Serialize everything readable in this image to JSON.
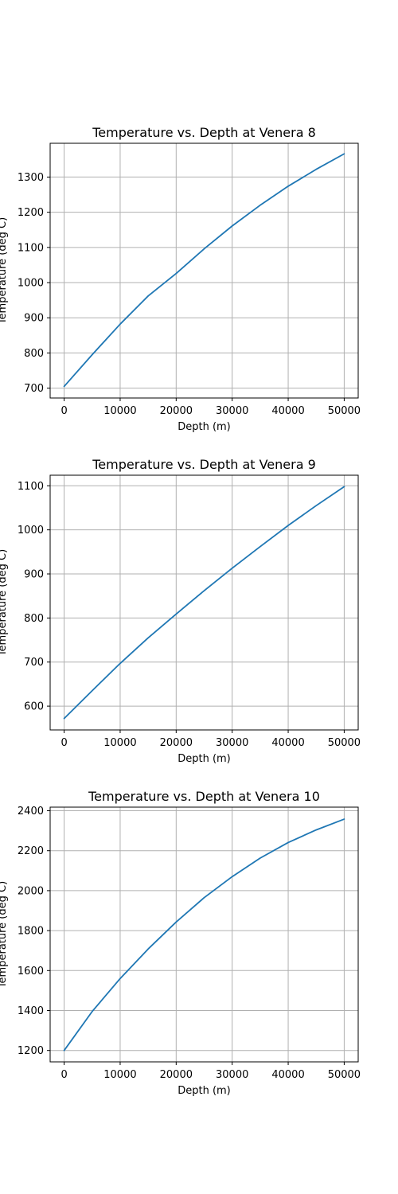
{
  "colors": {
    "series": "#1f77b4",
    "grid": "#b0b0b0"
  },
  "chart_data": [
    {
      "type": "line",
      "title": "Temperature vs. Depth at Venera 8",
      "xlabel": "Depth (m)",
      "ylabel": "Temperature (deg C)",
      "grid": true,
      "xlim": [
        -2500,
        52500
      ],
      "ylim": [
        672,
        1396
      ],
      "xticks": [
        0,
        10000,
        20000,
        30000,
        40000,
        50000
      ],
      "yticks": [
        700,
        800,
        900,
        1000,
        1100,
        1200,
        1300
      ],
      "series": [
        {
          "x": [
            0,
            5000,
            10000,
            15000,
            20000,
            25000,
            30000,
            35000,
            40000,
            45000,
            50000
          ],
          "values": [
            705,
            795,
            882,
            962,
            1026,
            1096,
            1161,
            1220,
            1274,
            1322,
            1366
          ]
        }
      ]
    },
    {
      "type": "line",
      "title": "Temperature vs. Depth at Venera 9",
      "xlabel": "Depth (m)",
      "ylabel": "Temperature (deg C)",
      "grid": true,
      "xlim": [
        -2500,
        52500
      ],
      "ylim": [
        546,
        1124
      ],
      "xticks": [
        0,
        10000,
        20000,
        30000,
        40000,
        50000
      ],
      "yticks": [
        600,
        700,
        800,
        900,
        1000,
        1100
      ],
      "series": [
        {
          "x": [
            0,
            5000,
            10000,
            15000,
            20000,
            25000,
            30000,
            35000,
            40000,
            45000,
            50000
          ],
          "values": [
            572,
            635,
            697,
            755,
            809,
            862,
            913,
            962,
            1010,
            1055,
            1098
          ]
        }
      ]
    },
    {
      "type": "line",
      "title": "Temperature vs. Depth at Venera 10",
      "xlabel": "Depth (m)",
      "ylabel": "Temperature (deg C)",
      "grid": true,
      "xlim": [
        -2500,
        52500
      ],
      "ylim": [
        1143,
        2418
      ],
      "xticks": [
        0,
        10000,
        20000,
        30000,
        40000,
        50000
      ],
      "yticks": [
        1200,
        1400,
        1600,
        1800,
        2000,
        2200,
        2400
      ],
      "series": [
        {
          "x": [
            0,
            5000,
            10000,
            15000,
            20000,
            25000,
            30000,
            35000,
            40000,
            45000,
            50000
          ],
          "values": [
            1200,
            1395,
            1560,
            1708,
            1843,
            1965,
            2070,
            2163,
            2241,
            2304,
            2358
          ]
        }
      ]
    }
  ]
}
